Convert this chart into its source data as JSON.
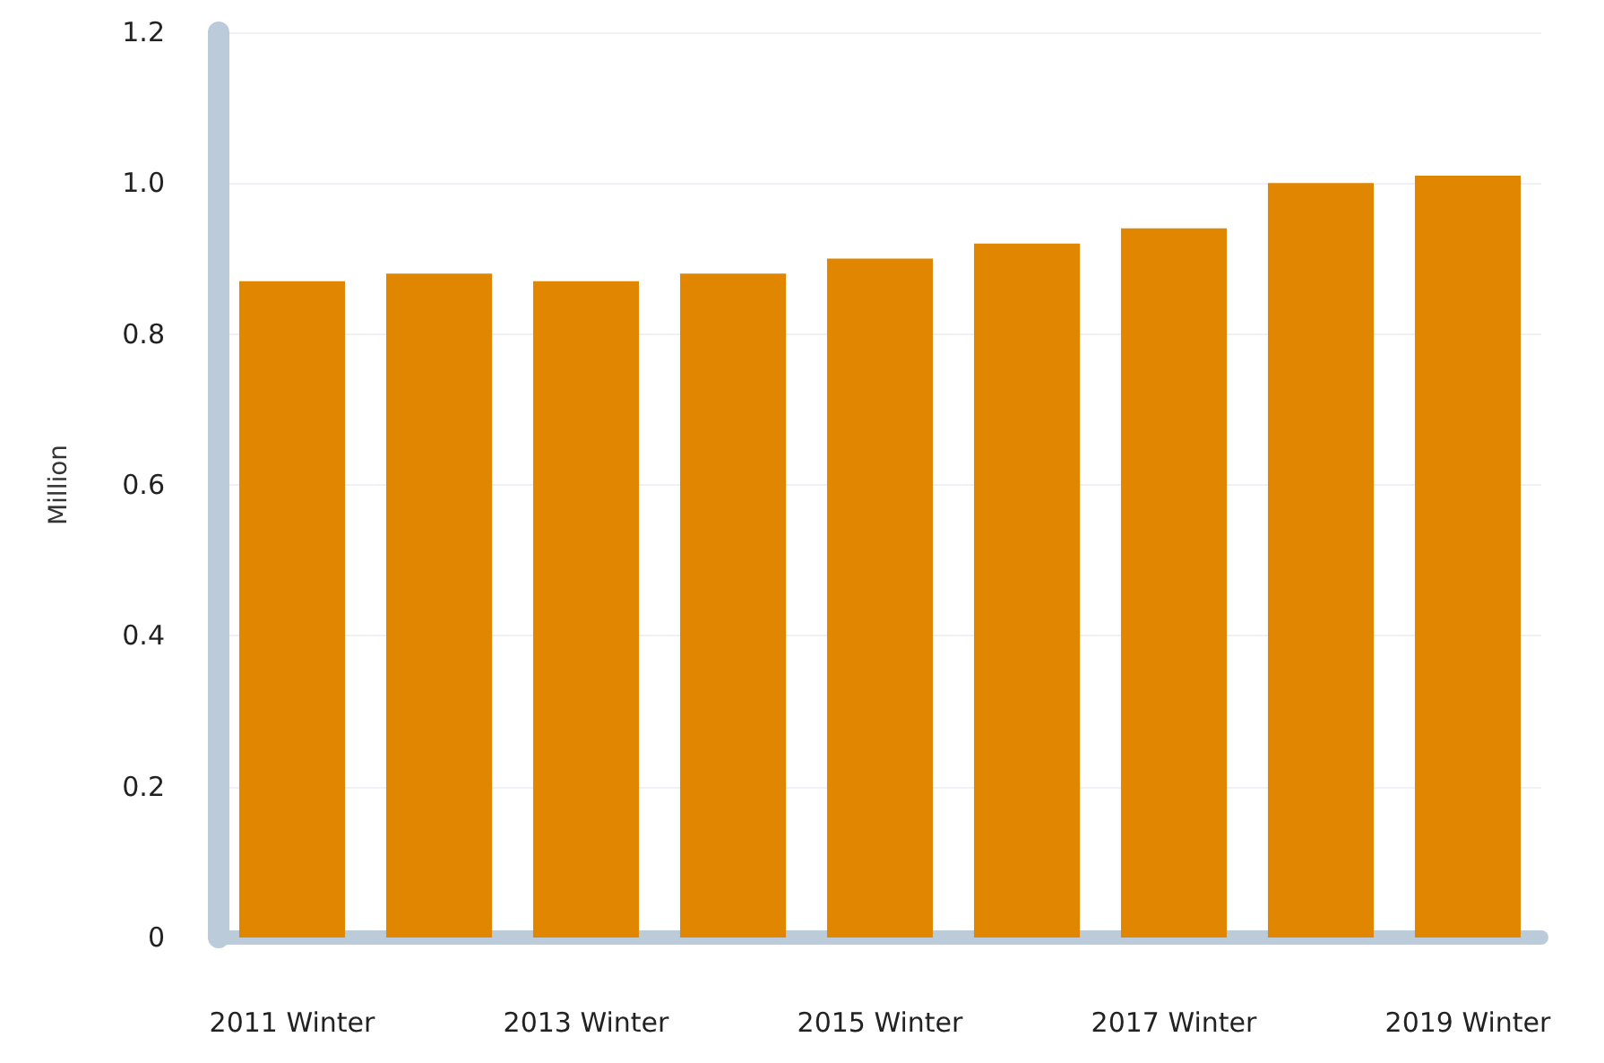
{
  "chart_data": {
    "type": "bar",
    "ylabel": "Million",
    "categories": [
      "2011 Winter",
      null,
      "2013 Winter",
      null,
      "2015 Winter",
      null,
      "2017 Winter",
      null,
      "2019 Winter"
    ],
    "values": [
      0.87,
      0.88,
      0.87,
      0.88,
      0.9,
      0.92,
      0.94,
      1.0,
      1.01
    ],
    "color": "#e08600",
    "ylim": [
      0,
      1.2
    ],
    "yticks": [
      0,
      {
        "value": 0.2,
        "label": "0.2"
      },
      {
        "value": 0.4,
        "label": "0.4"
      },
      {
        "value": 0.6,
        "label": "0.6"
      },
      {
        "value": 0.8,
        "label": "0.8"
      },
      {
        "value": 1,
        "label": "1.0"
      },
      {
        "value": 1.2,
        "label": "1.2"
      }
    ],
    "grid": "y"
  }
}
